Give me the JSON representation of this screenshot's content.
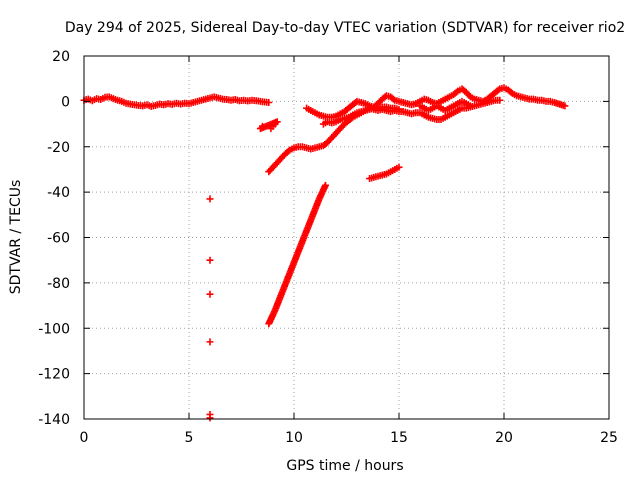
{
  "chart_data": {
    "type": "scatter",
    "title": "Day 294 of 2025, Sidereal Day-to-day VTEC variation (SDTVAR) for receiver rio2",
    "xlabel": "GPS time / hours",
    "ylabel": "SDTVAR / TECUs",
    "xlim": [
      0,
      25
    ],
    "ylim": [
      -140,
      20
    ],
    "xticks": [
      "0",
      "5",
      "10",
      "15",
      "20",
      "25"
    ],
    "yticks": [
      "20",
      "0",
      "-20",
      "-40",
      "-60",
      "-80",
      "-100",
      "-120",
      "-140"
    ],
    "grid": true,
    "marker": "+",
    "color": "#ff0000",
    "series": [
      {
        "points": [
          [
            0.0,
            0.5
          ],
          [
            0.2,
            1.0
          ],
          [
            0.4,
            0.3
          ],
          [
            0.6,
            1.2
          ],
          [
            0.8,
            0.8
          ],
          [
            1.0,
            1.8
          ],
          [
            1.2,
            2.0
          ],
          [
            1.4,
            1.2
          ],
          [
            1.6,
            0.5
          ],
          [
            1.8,
            0.0
          ],
          [
            2.0,
            -0.8
          ],
          [
            2.2,
            -1.2
          ],
          [
            2.4,
            -1.5
          ],
          [
            2.6,
            -1.8
          ],
          [
            2.8,
            -2.0
          ],
          [
            3.0,
            -1.5
          ],
          [
            3.2,
            -2.2
          ],
          [
            3.4,
            -1.8
          ],
          [
            3.6,
            -1.2
          ],
          [
            3.8,
            -1.5
          ],
          [
            4.0,
            -1.0
          ],
          [
            4.2,
            -1.3
          ],
          [
            4.4,
            -0.8
          ],
          [
            4.6,
            -1.2
          ],
          [
            4.8,
            -0.8
          ],
          [
            5.0,
            -1.0
          ],
          [
            5.2,
            -0.5
          ],
          [
            5.4,
            0.0
          ],
          [
            5.6,
            0.5
          ],
          [
            5.8,
            1.0
          ],
          [
            6.0,
            1.5
          ],
          [
            6.2,
            2.0
          ],
          [
            6.4,
            1.5
          ],
          [
            6.6,
            1.0
          ],
          [
            6.8,
            0.8
          ],
          [
            7.0,
            0.5
          ],
          [
            7.2,
            0.8
          ],
          [
            7.4,
            0.3
          ],
          [
            7.6,
            0.5
          ],
          [
            7.8,
            0.2
          ],
          [
            8.0,
            0.5
          ],
          [
            8.2,
            0.3
          ],
          [
            8.4,
            0.0
          ],
          [
            8.6,
            -0.3
          ],
          [
            8.8,
            -0.5
          ]
        ]
      },
      {
        "points": [
          [
            8.8,
            -31
          ],
          [
            9.0,
            -29
          ],
          [
            9.2,
            -27
          ],
          [
            9.4,
            -25
          ],
          [
            9.6,
            -23
          ],
          [
            9.8,
            -21.5
          ],
          [
            10.0,
            -20.5
          ],
          [
            10.2,
            -20
          ],
          [
            10.4,
            -20
          ],
          [
            10.6,
            -20.5
          ],
          [
            10.8,
            -21
          ],
          [
            11.0,
            -20.5
          ],
          [
            11.2,
            -20
          ],
          [
            11.4,
            -19.5
          ],
          [
            11.6,
            -18
          ],
          [
            11.8,
            -16
          ],
          [
            12.0,
            -14
          ],
          [
            12.2,
            -12
          ],
          [
            12.4,
            -10
          ],
          [
            12.6,
            -8.5
          ],
          [
            12.8,
            -7
          ],
          [
            13.0,
            -6
          ],
          [
            13.2,
            -5
          ],
          [
            13.4,
            -4
          ],
          [
            13.6,
            -3.5
          ],
          [
            13.8,
            -3
          ],
          [
            14.0,
            -3
          ],
          [
            14.2,
            -2.5
          ],
          [
            14.4,
            -2.5
          ],
          [
            14.6,
            -3
          ],
          [
            14.8,
            -3
          ],
          [
            15.0,
            -3.5
          ]
        ]
      },
      {
        "points": [
          [
            8.8,
            -98
          ],
          [
            9.1,
            -92
          ],
          [
            9.4,
            -85
          ],
          [
            9.7,
            -78
          ],
          [
            10.0,
            -71
          ],
          [
            10.3,
            -64
          ],
          [
            10.6,
            -57
          ],
          [
            10.9,
            -50
          ],
          [
            11.2,
            -43
          ],
          [
            11.5,
            -37
          ]
        ]
      },
      {
        "points": [
          [
            8.9,
            -12
          ],
          [
            9.0,
            -11
          ],
          [
            9.1,
            -10
          ],
          [
            9.2,
            -9
          ],
          [
            8.4,
            -12
          ],
          [
            8.5,
            -11
          ]
        ]
      },
      {
        "points": [
          [
            10.6,
            -3
          ],
          [
            10.8,
            -4
          ],
          [
            11.0,
            -5
          ],
          [
            11.2,
            -6
          ],
          [
            11.4,
            -6.5
          ],
          [
            11.6,
            -7
          ],
          [
            11.8,
            -7
          ],
          [
            12.0,
            -6.5
          ],
          [
            12.2,
            -5.5
          ],
          [
            12.4,
            -4.5
          ],
          [
            12.6,
            -3
          ],
          [
            12.8,
            -1.5
          ],
          [
            13.0,
            0
          ],
          [
            13.2,
            -0.5
          ],
          [
            13.4,
            -1
          ],
          [
            13.6,
            -2
          ],
          [
            13.8,
            -2.5
          ],
          [
            14.0,
            -1
          ],
          [
            14.2,
            1
          ],
          [
            14.4,
            2.5
          ],
          [
            14.6,
            2
          ],
          [
            14.8,
            0.5
          ],
          [
            15.0,
            0
          ],
          [
            15.2,
            -0.5
          ],
          [
            15.4,
            -1
          ],
          [
            15.6,
            -1.5
          ],
          [
            15.8,
            -1
          ],
          [
            16.0,
            0
          ],
          [
            16.2,
            1
          ],
          [
            16.4,
            0.5
          ],
          [
            16.6,
            -0.5
          ],
          [
            16.8,
            -1
          ],
          [
            17.0,
            0
          ],
          [
            17.2,
            1
          ],
          [
            17.4,
            2
          ],
          [
            17.6,
            3
          ],
          [
            17.8,
            4.5
          ],
          [
            18.0,
            5.5
          ],
          [
            18.2,
            4
          ],
          [
            18.4,
            2
          ],
          [
            18.6,
            1
          ],
          [
            18.8,
            0.5
          ],
          [
            19.0,
            0
          ],
          [
            19.2,
            1
          ],
          [
            19.4,
            2.5
          ],
          [
            19.6,
            4
          ],
          [
            19.8,
            5.5
          ],
          [
            20.0,
            6
          ],
          [
            20.2,
            5
          ],
          [
            20.4,
            3.5
          ],
          [
            20.6,
            2.5
          ],
          [
            20.8,
            2
          ],
          [
            21.0,
            1.5
          ],
          [
            21.2,
            1
          ],
          [
            21.4,
            1
          ],
          [
            21.6,
            0.5
          ],
          [
            21.8,
            0.5
          ],
          [
            22.0,
            0
          ],
          [
            22.2,
            0
          ],
          [
            22.4,
            -0.5
          ],
          [
            22.9,
            -2
          ]
        ]
      },
      {
        "points": [
          [
            11.4,
            -10
          ],
          [
            11.6,
            -9
          ],
          [
            11.8,
            -9.5
          ],
          [
            12.0,
            -9
          ],
          [
            12.2,
            -8
          ],
          [
            12.4,
            -7.5
          ],
          [
            12.6,
            -7
          ],
          [
            12.8,
            -6
          ],
          [
            13.0,
            -5
          ],
          [
            13.2,
            -4.5
          ],
          [
            13.4,
            -4
          ],
          [
            13.6,
            -3
          ],
          [
            13.8,
            -3.5
          ],
          [
            14.0,
            -4
          ],
          [
            14.2,
            -3.5
          ],
          [
            14.4,
            -4
          ],
          [
            14.6,
            -4.5
          ],
          [
            14.8,
            -4
          ],
          [
            15.0,
            -4.5
          ],
          [
            15.2,
            -4.5
          ],
          [
            15.4,
            -5
          ],
          [
            15.6,
            -5.5
          ],
          [
            15.8,
            -5
          ],
          [
            16.0,
            -5
          ],
          [
            16.2,
            -6
          ],
          [
            16.4,
            -7
          ],
          [
            16.6,
            -7.5
          ],
          [
            16.8,
            -8
          ],
          [
            17.0,
            -8
          ],
          [
            17.2,
            -7
          ],
          [
            17.4,
            -6
          ],
          [
            17.6,
            -5
          ],
          [
            17.8,
            -4
          ],
          [
            18.0,
            -3
          ],
          [
            18.2,
            -3
          ],
          [
            18.4,
            -2.5
          ],
          [
            18.6,
            -2
          ],
          [
            18.8,
            -1.5
          ],
          [
            19.0,
            -1
          ],
          [
            19.2,
            -0.5
          ],
          [
            19.4,
            0
          ],
          [
            19.6,
            0.5
          ],
          [
            19.8,
            0.5
          ]
        ]
      },
      {
        "points": [
          [
            16.0,
            -2
          ],
          [
            16.2,
            -3
          ],
          [
            16.4,
            -4
          ],
          [
            16.6,
            -3
          ],
          [
            16.8,
            -2
          ],
          [
            17.0,
            -3
          ],
          [
            17.2,
            -4
          ],
          [
            17.4,
            -3
          ],
          [
            17.6,
            -2
          ],
          [
            17.8,
            -1
          ],
          [
            18.0,
            0
          ],
          [
            18.2,
            -1
          ],
          [
            18.4,
            -2
          ]
        ]
      },
      {
        "points": [
          [
            13.6,
            -34
          ],
          [
            13.8,
            -33.5
          ],
          [
            14.0,
            -33
          ],
          [
            14.2,
            -32.5
          ],
          [
            14.4,
            -32
          ],
          [
            14.6,
            -31
          ],
          [
            14.8,
            -30
          ],
          [
            15.0,
            -29
          ]
        ]
      },
      {
        "points": [
          [
            6.0,
            -43
          ],
          [
            6.0,
            -70
          ],
          [
            6.0,
            -85
          ],
          [
            6.0,
            -106
          ],
          [
            6.0,
            -138
          ],
          [
            6.0,
            -139.5
          ]
        ]
      }
    ]
  }
}
